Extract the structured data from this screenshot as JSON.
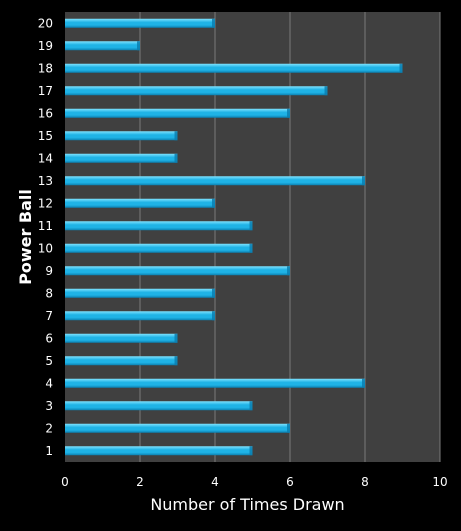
{
  "chart_data": {
    "type": "bar",
    "orientation": "horizontal",
    "categories": [
      "1",
      "2",
      "3",
      "4",
      "5",
      "6",
      "7",
      "8",
      "9",
      "10",
      "11",
      "12",
      "13",
      "14",
      "15",
      "16",
      "17",
      "18",
      "19",
      "20"
    ],
    "values": [
      5,
      6,
      5,
      8,
      3,
      3,
      4,
      4,
      6,
      5,
      5,
      4,
      8,
      3,
      3,
      6,
      7,
      9,
      2,
      4
    ],
    "xlabel": "Number of Times Drawn",
    "ylabel": "Power Ball",
    "xlim": [
      0,
      10
    ],
    "xticks": [
      0,
      2,
      4,
      6,
      8,
      10
    ],
    "grid": "vertical",
    "legend": "none"
  },
  "colors": {
    "page_background": "#000000",
    "plot_background": "#404040",
    "gridline": "#7a7a7a",
    "bar_light": "#7fe3ff",
    "bar_main": "#1fb3e6",
    "bar_dark": "#0a7fb0",
    "text": "#ffffff"
  }
}
